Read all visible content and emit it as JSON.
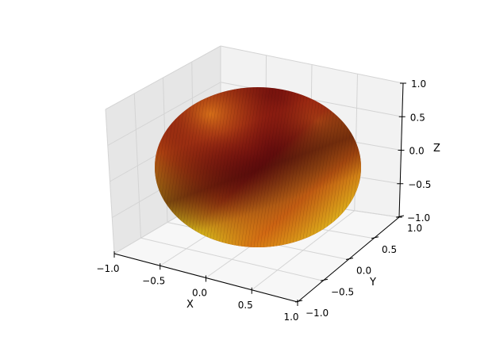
{
  "chart_data": {
    "type": "surface",
    "title": "",
    "xlabel": "X",
    "ylabel": "Y",
    "zlabel": "Z",
    "xlim": [
      -1.0,
      1.0
    ],
    "ylim": [
      -1.0,
      1.0
    ],
    "zlim": [
      -1.0,
      1.0
    ],
    "x_ticks": [
      "−1.0",
      "−0.5",
      "0.0",
      "0.5",
      "1.0"
    ],
    "y_ticks": [
      "−1.0",
      "−0.5",
      "0.0",
      "0.5",
      "1.0"
    ],
    "z_ticks": [
      "−1.0",
      "−0.5",
      "0.0",
      "0.5",
      "1.0"
    ],
    "surface": "unit sphere",
    "colormap": "hot",
    "grid": true,
    "colors": {
      "pane_back": "#f2f2f2",
      "pane_side": "#e6e6e6",
      "pane_floor": "#f7f7f7",
      "grid": "#d4d4d4",
      "axis_line": "#000000",
      "surface_dark": "#5a0b0b",
      "surface_mid": "#c81e0a",
      "surface_bright": "#e8ee22"
    }
  }
}
